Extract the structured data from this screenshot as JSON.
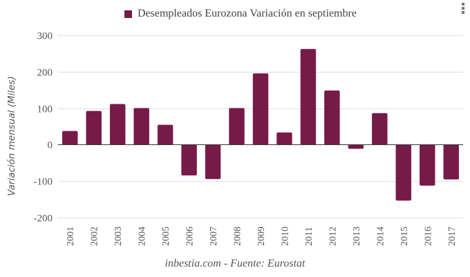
{
  "menu": {
    "icon": "vertical-ellipsis-icon"
  },
  "legend": {
    "label": "Desempleados Eurozona Variación en septiembre",
    "color": "#761a48"
  },
  "source": "inbestia.com - Fuente: Eurostat",
  "chart_data": {
    "type": "bar",
    "title": "",
    "legend": [
      "Desempleados Eurozona Variación en septiembre"
    ],
    "legend_position": "top-center",
    "xlabel": "",
    "ylabel": "Variación mensual (Miles)",
    "ylim": [
      -200,
      300
    ],
    "yticks": [
      300,
      200,
      100,
      0,
      -100,
      -200
    ],
    "ytick_labels": [
      "300",
      "200",
      "100",
      "0",
      "-100",
      "-200"
    ],
    "grid": true,
    "categories": [
      "2001",
      "2002",
      "2003",
      "2004",
      "2005",
      "2006",
      "2007",
      "2008",
      "2009",
      "2010",
      "2011",
      "2012",
      "2013",
      "2014",
      "2015",
      "2016",
      "2017"
    ],
    "series": [
      {
        "name": "Desempleados Eurozona Variación en septiembre",
        "color": "#761a48",
        "values": [
          37,
          92,
          111,
          100,
          54,
          -84,
          -94,
          100,
          195,
          33,
          262,
          148,
          -11,
          86,
          -153,
          -112,
          -95
        ]
      }
    ],
    "annotation": "inbestia.com - Fuente: Eurostat"
  }
}
